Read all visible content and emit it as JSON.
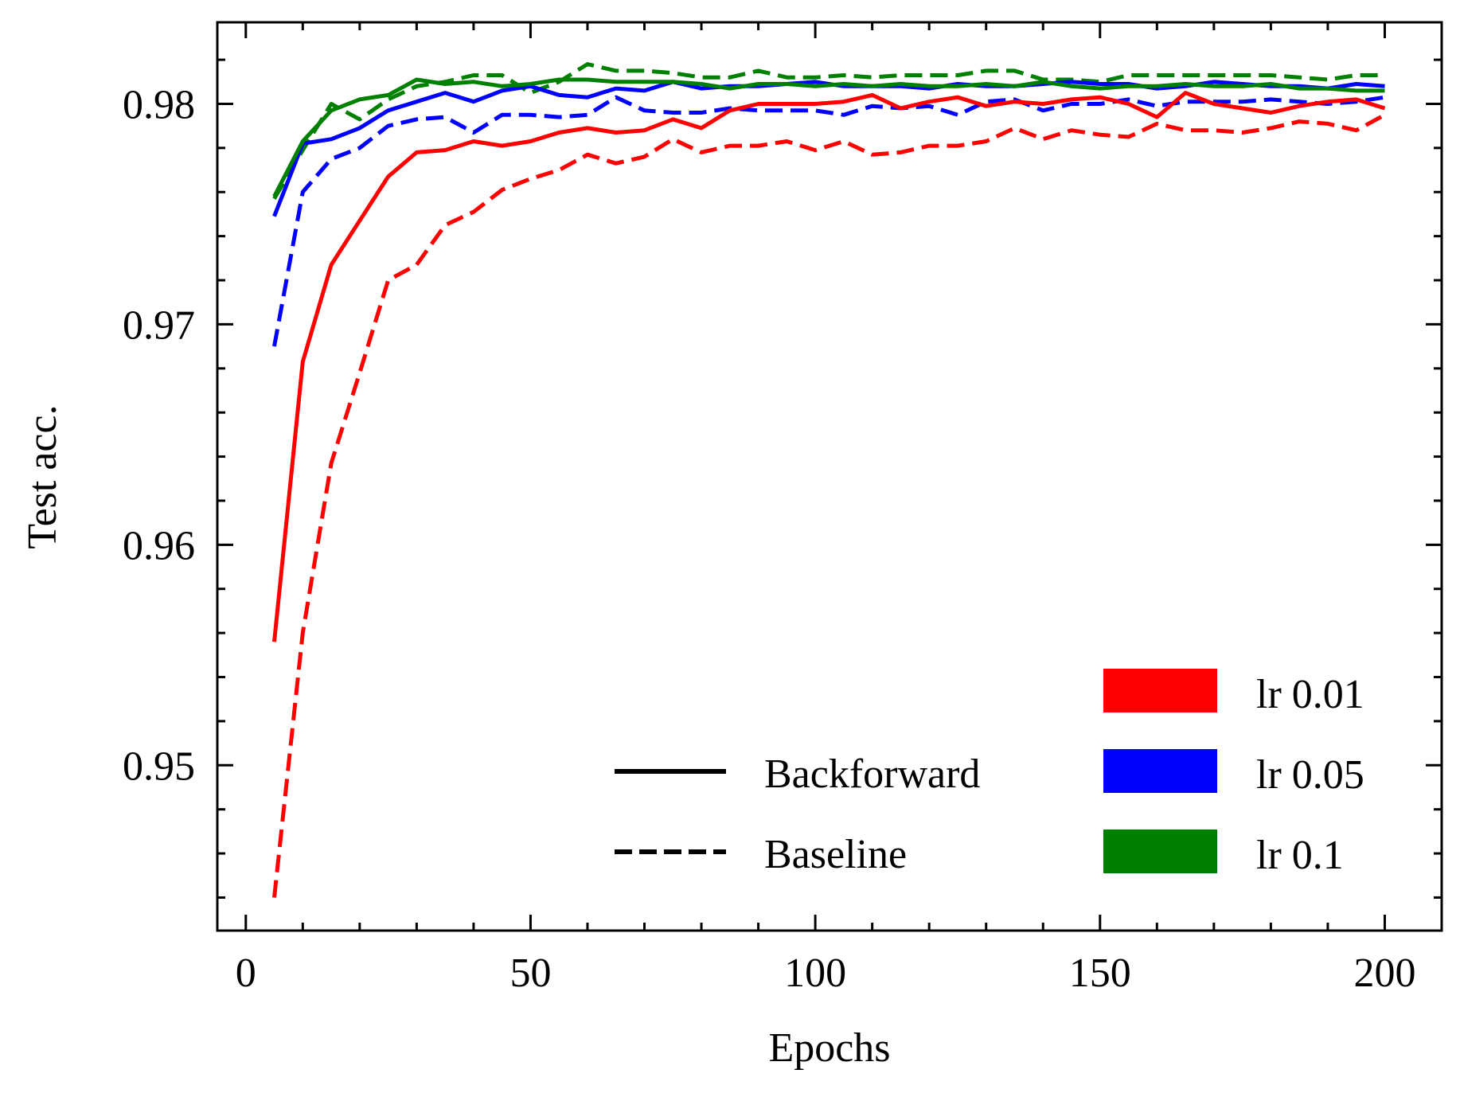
{
  "chart_data": {
    "type": "line",
    "title": "",
    "xlabel": "Epochs",
    "ylabel": "Test acc.",
    "xlim": [
      -5,
      210
    ],
    "ylim": [
      0.9425,
      0.9837
    ],
    "x_ticks": [
      0,
      50,
      100,
      150,
      200
    ],
    "x_tick_labels": [
      "0",
      "50",
      "100",
      "150",
      "200"
    ],
    "y_ticks": [
      0.95,
      0.96,
      0.97,
      0.98
    ],
    "y_tick_labels": [
      "0.95",
      "0.96",
      "0.97",
      "0.98"
    ],
    "x_minor_step": 10,
    "y_minor_step": 0.002,
    "grid": false,
    "legend_position": "bottom-right",
    "style_legend": [
      {
        "label": "Backforward",
        "dash": "solid"
      },
      {
        "label": "Baseline",
        "dash": "dashed"
      }
    ],
    "color_legend": [
      {
        "label": "lr 0.01",
        "color": "#ff0000"
      },
      {
        "label": "lr 0.05",
        "color": "#0000ff"
      },
      {
        "label": "lr 0.1",
        "color": "#008000"
      }
    ],
    "x": [
      5,
      10,
      15,
      20,
      25,
      30,
      35,
      40,
      45,
      50,
      55,
      60,
      65,
      70,
      75,
      80,
      85,
      90,
      95,
      100,
      105,
      110,
      115,
      120,
      125,
      130,
      135,
      140,
      145,
      150,
      155,
      160,
      165,
      170,
      175,
      180,
      185,
      190,
      195,
      200
    ],
    "series": [
      {
        "name": "lr 0.01 Backforward",
        "color": "#ff0000",
        "dash": "solid",
        "values": [
          0.9556,
          0.9683,
          0.9727,
          0.9747,
          0.9767,
          0.9778,
          0.9779,
          0.9783,
          0.9781,
          0.9783,
          0.9787,
          0.9789,
          0.9787,
          0.9788,
          0.9793,
          0.9789,
          0.9797,
          0.98,
          0.98,
          0.98,
          0.9801,
          0.9804,
          0.9798,
          0.9801,
          0.9803,
          0.9799,
          0.9801,
          0.98,
          0.9802,
          0.9803,
          0.98,
          0.9794,
          0.9805,
          0.98,
          0.9798,
          0.9796,
          0.9799,
          0.9801,
          0.9802,
          0.9798
        ]
      },
      {
        "name": "lr 0.01 Baseline",
        "color": "#ff0000",
        "dash": "dashed",
        "values": [
          0.944,
          0.956,
          0.9637,
          0.9678,
          0.972,
          0.9727,
          0.9745,
          0.9751,
          0.9761,
          0.9766,
          0.977,
          0.9777,
          0.9773,
          0.9776,
          0.9784,
          0.9778,
          0.9781,
          0.9781,
          0.9783,
          0.9779,
          0.9783,
          0.9777,
          0.9778,
          0.9781,
          0.9781,
          0.9783,
          0.9789,
          0.9784,
          0.9788,
          0.9786,
          0.9785,
          0.9791,
          0.9788,
          0.9788,
          0.9787,
          0.9789,
          0.9792,
          0.9791,
          0.9788,
          0.9795
        ]
      },
      {
        "name": "lr 0.05 Backforward",
        "color": "#0000ff",
        "dash": "solid",
        "values": [
          0.9749,
          0.9782,
          0.9784,
          0.9789,
          0.9797,
          0.9801,
          0.9805,
          0.9801,
          0.9806,
          0.9808,
          0.9804,
          0.9803,
          0.9807,
          0.9806,
          0.981,
          0.9807,
          0.9808,
          0.9808,
          0.9809,
          0.981,
          0.9808,
          0.9808,
          0.9808,
          0.9807,
          0.9809,
          0.9808,
          0.9808,
          0.9809,
          0.981,
          0.9809,
          0.9809,
          0.9807,
          0.9808,
          0.981,
          0.9809,
          0.9808,
          0.9808,
          0.9807,
          0.9809,
          0.9808
        ]
      },
      {
        "name": "lr 0.05 Baseline",
        "color": "#0000ff",
        "dash": "dashed",
        "values": [
          0.969,
          0.976,
          0.9775,
          0.978,
          0.979,
          0.9793,
          0.9794,
          0.9787,
          0.9795,
          0.9795,
          0.9794,
          0.9795,
          0.9803,
          0.9797,
          0.9796,
          0.9796,
          0.9798,
          0.9797,
          0.9797,
          0.9797,
          0.9795,
          0.9799,
          0.9798,
          0.9799,
          0.9795,
          0.9801,
          0.9802,
          0.9797,
          0.98,
          0.98,
          0.9802,
          0.9799,
          0.9801,
          0.9801,
          0.9801,
          0.9802,
          0.9801,
          0.98,
          0.9801,
          0.9803
        ]
      },
      {
        "name": "lr 0.1 Backforward",
        "color": "#008000",
        "dash": "solid",
        "values": [
          0.9758,
          0.9783,
          0.9797,
          0.9802,
          0.9804,
          0.9811,
          0.9809,
          0.981,
          0.9808,
          0.9809,
          0.9811,
          0.9811,
          0.981,
          0.981,
          0.981,
          0.9809,
          0.9807,
          0.9809,
          0.9809,
          0.9808,
          0.9809,
          0.9808,
          0.9809,
          0.9808,
          0.9808,
          0.9809,
          0.9808,
          0.981,
          0.9808,
          0.9807,
          0.9808,
          0.9808,
          0.9809,
          0.9808,
          0.9808,
          0.9809,
          0.9807,
          0.9807,
          0.9806,
          0.9806
        ]
      },
      {
        "name": "lr 0.1 Baseline",
        "color": "#008000",
        "dash": "dashed",
        "values": [
          0.9757,
          0.9779,
          0.98,
          0.9793,
          0.9802,
          0.9808,
          0.981,
          0.9813,
          0.9813,
          0.9805,
          0.981,
          0.9818,
          0.9815,
          0.9815,
          0.9814,
          0.9812,
          0.9812,
          0.9815,
          0.9812,
          0.9812,
          0.9813,
          0.9812,
          0.9813,
          0.9813,
          0.9813,
          0.9815,
          0.9815,
          0.9811,
          0.9811,
          0.981,
          0.9813,
          0.9813,
          0.9813,
          0.9813,
          0.9813,
          0.9813,
          0.9812,
          0.9811,
          0.9813,
          0.9813
        ]
      }
    ]
  }
}
